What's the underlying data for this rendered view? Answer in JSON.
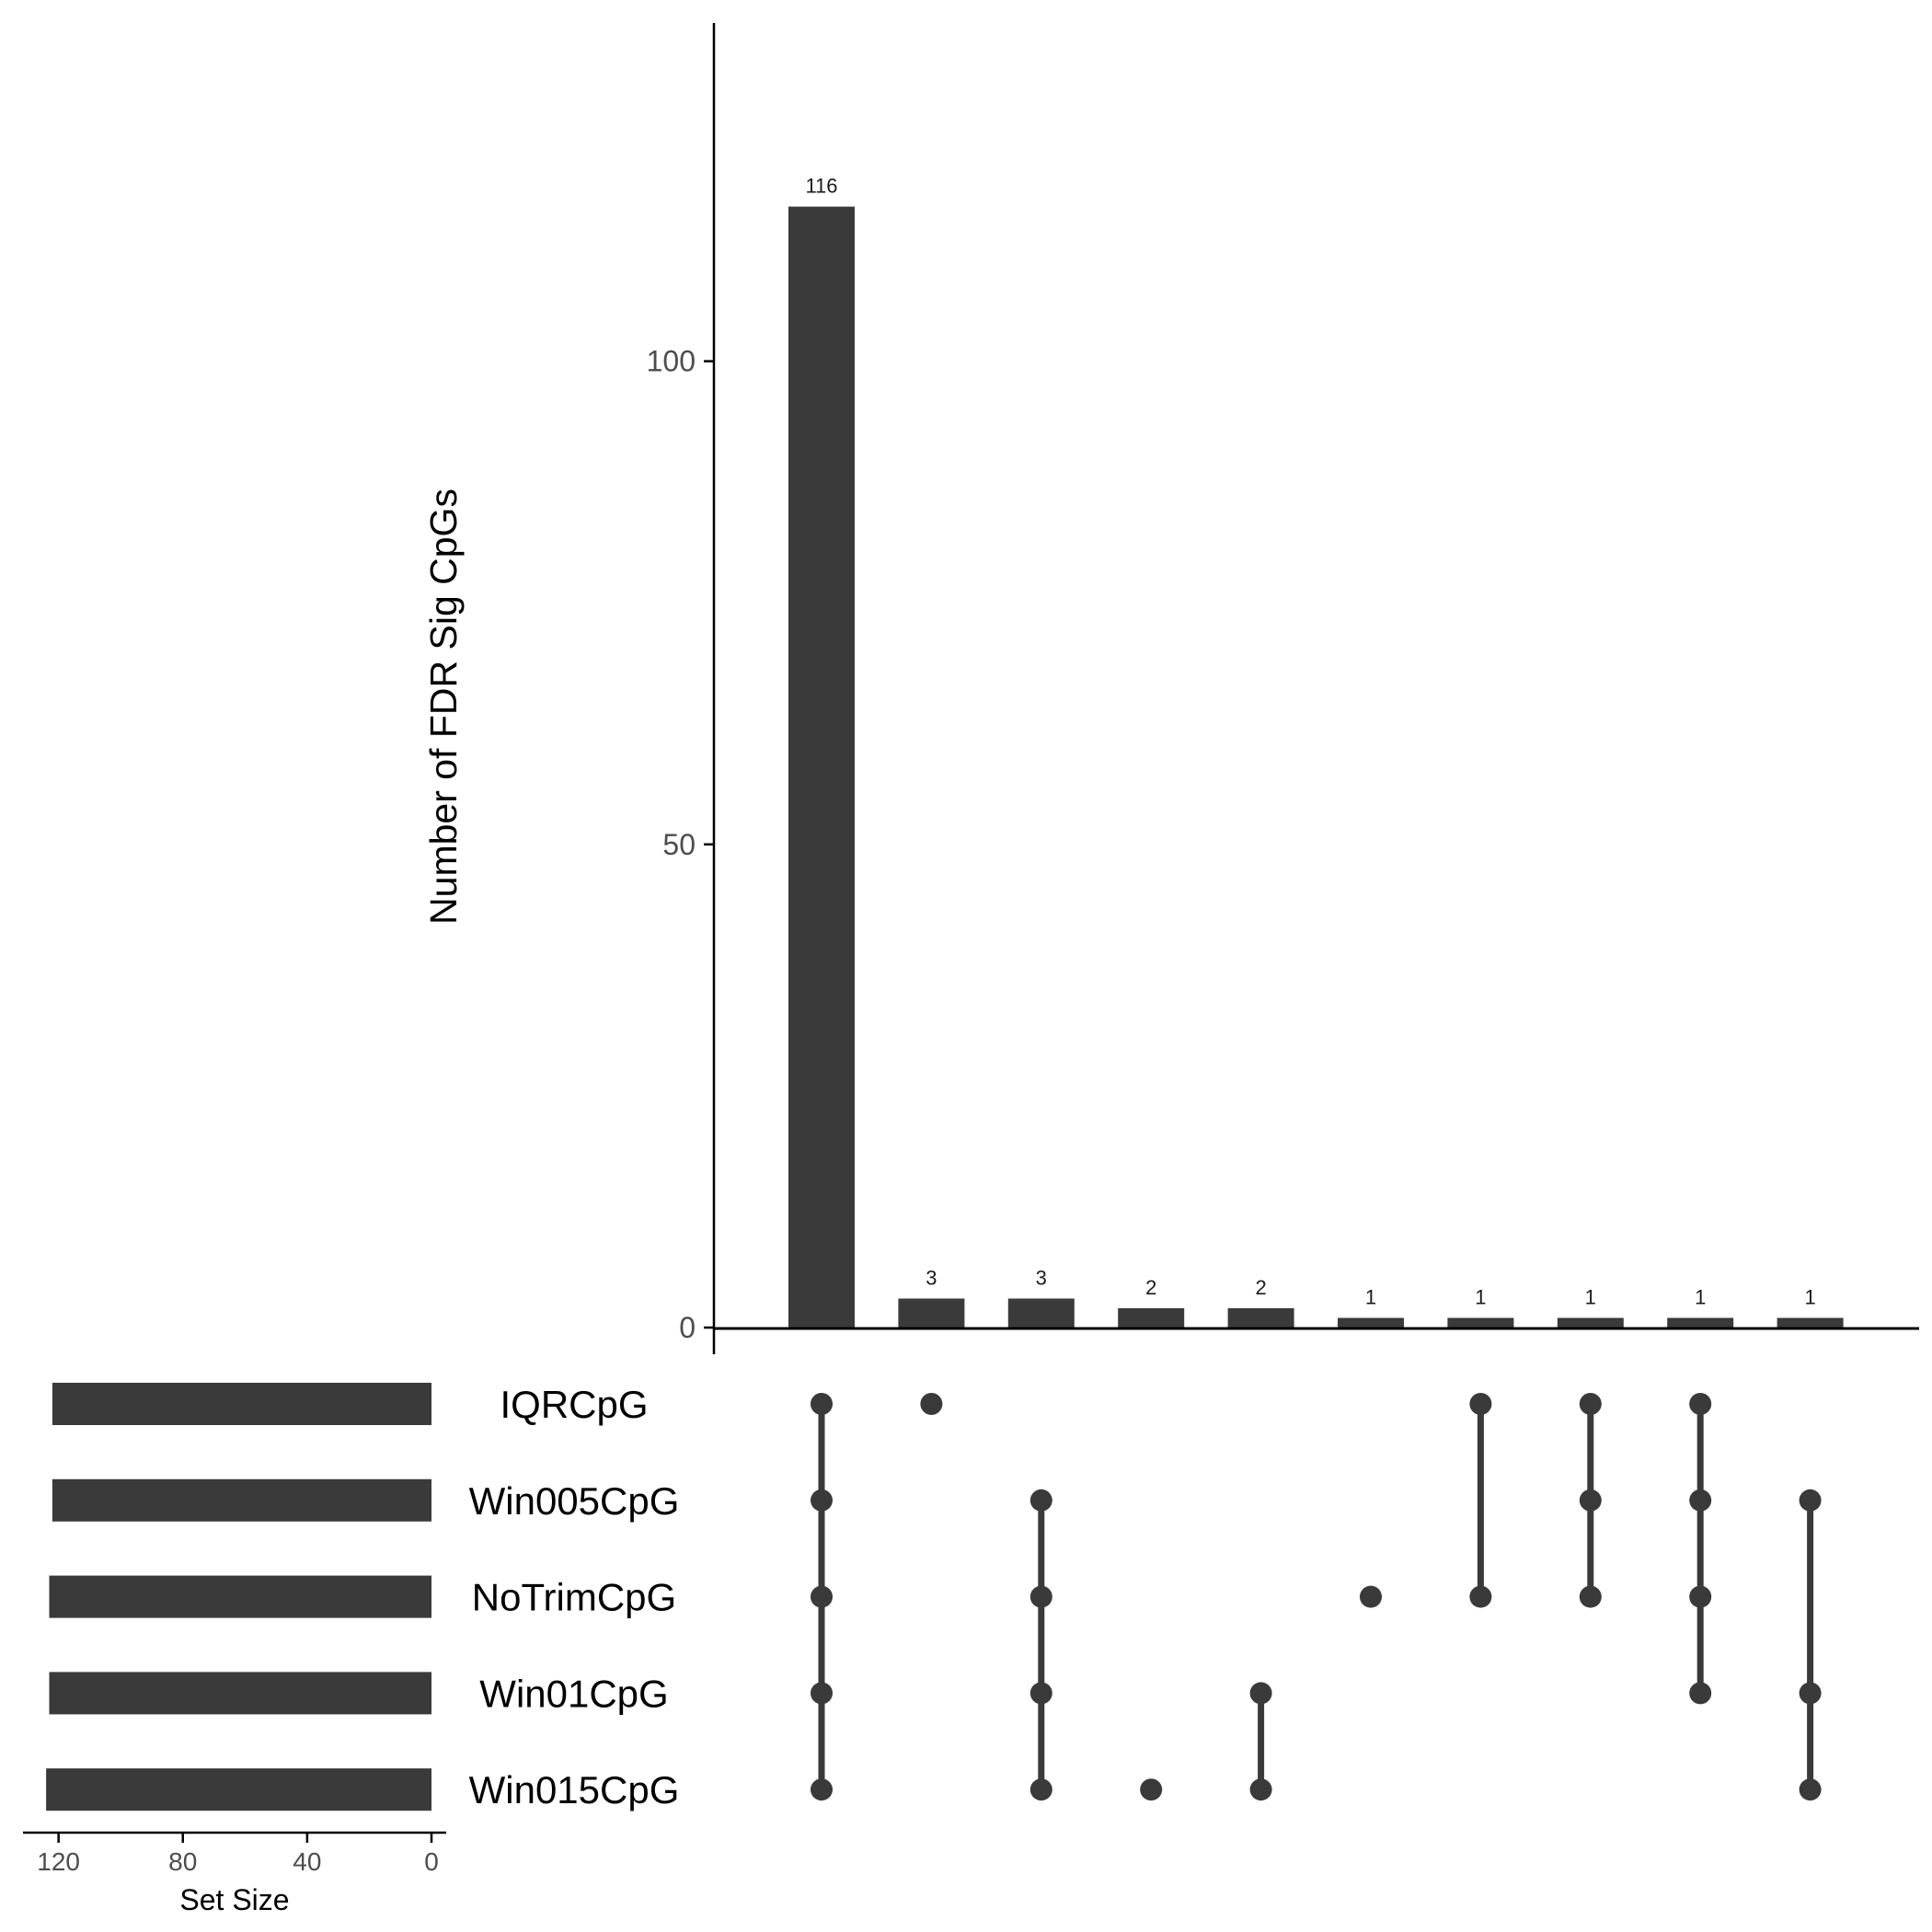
{
  "chart_data": {
    "type": "bar",
    "subtype": "upset",
    "colors": {
      "bar": "#3a3a3a",
      "dot": "#3a3a3a",
      "axis": "#000000",
      "tick_text": "#4d4d4d"
    },
    "intersections": {
      "ylabel": "Number of FDR Sig CpGs",
      "ylim": [
        0,
        135
      ],
      "yticks": [
        0,
        50,
        100
      ],
      "values": [
        116,
        3,
        3,
        2,
        2,
        1,
        1,
        1,
        1,
        1
      ],
      "labels": [
        "116",
        "3",
        "3",
        "2",
        "2",
        "1",
        "1",
        "1",
        "1",
        "1"
      ],
      "members": [
        [
          "IQRCpG",
          "Win005CpG",
          "NoTrimCpG",
          "Win01CpG",
          "Win015CpG"
        ],
        [
          "IQRCpG"
        ],
        [
          "Win005CpG",
          "NoTrimCpG",
          "Win01CpG",
          "Win015CpG"
        ],
        [
          "Win015CpG"
        ],
        [
          "Win01CpG",
          "Win015CpG"
        ],
        [
          "NoTrimCpG"
        ],
        [
          "IQRCpG",
          "NoTrimCpG"
        ],
        [
          "IQRCpG",
          "Win005CpG",
          "NoTrimCpG"
        ],
        [
          "IQRCpG",
          "Win005CpG",
          "NoTrimCpG",
          "Win01CpG"
        ],
        [
          "Win005CpG",
          "Win01CpG",
          "Win015CpG"
        ]
      ]
    },
    "sets": {
      "names": [
        "IQRCpG",
        "Win005CpG",
        "NoTrimCpG",
        "Win01CpG",
        "Win015CpG"
      ],
      "sizes": [
        122,
        122,
        123,
        123,
        124
      ],
      "xlabel": "Set Size",
      "xlim": [
        0,
        130
      ],
      "xticks": [
        120,
        80,
        40,
        0
      ],
      "xtick_labels": [
        "120",
        "80",
        "40",
        "0"
      ]
    }
  }
}
